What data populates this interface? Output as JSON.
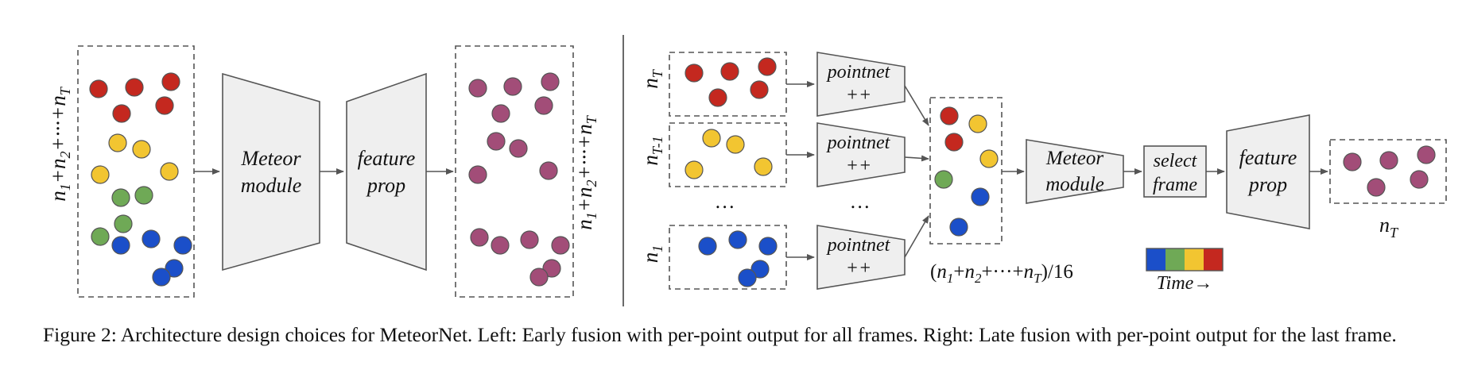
{
  "colors": {
    "red": "#c4281f",
    "yellow": "#f2c531",
    "green": "#6fa956",
    "blue": "#1b4fc9",
    "purple": "#a24d78",
    "box_fill": "#efefef",
    "stroke": "#555555"
  },
  "left": {
    "input_label": "n1+n2+···+nT",
    "meteor_line1": "Meteor",
    "meteor_line2": "module",
    "feature_line1": "feature",
    "feature_line2": "prop",
    "output_label": "n1+n2+···+nT"
  },
  "right": {
    "frame_labels": [
      "nT",
      "nT-1",
      "n1"
    ],
    "ellipsis": "…",
    "pointnet_line1": "pointnet",
    "pointnet_line2": "++",
    "concat_label": "(n1+n2+···+nT)/16",
    "meteor_line1": "Meteor",
    "meteor_line2": "module",
    "select_line1": "select",
    "select_line2": "frame",
    "feature_line1": "feature",
    "feature_line2": "prop",
    "output_label": "nT",
    "time_label": "Time→",
    "time_colors": [
      "blue",
      "green",
      "yellow",
      "red"
    ]
  },
  "caption": "Figure 2: Architecture design choices for MeteorNet. Left: Early fusion with per-point output for all frames. Right: Late fusion with per-point output for the last frame."
}
